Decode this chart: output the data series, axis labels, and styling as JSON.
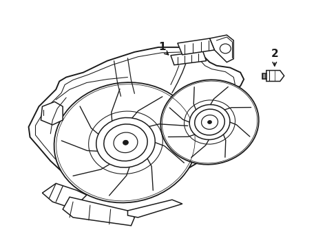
{
  "bg_color": "#ffffff",
  "line_color": "#1a1a1a",
  "lw": 1.1,
  "fig_width": 4.89,
  "fig_height": 3.6,
  "dpi": 100,
  "label1_text": "1",
  "label2_text": "2"
}
